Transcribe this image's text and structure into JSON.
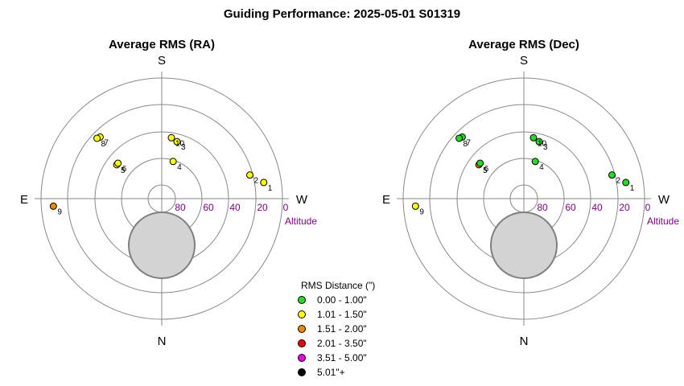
{
  "title": "Guiding Performance: 2025-05-01 S01319",
  "panels": [
    {
      "title": "Average RMS (RA)"
    },
    {
      "title": "Average RMS (Dec)"
    }
  ],
  "directions": {
    "top": "S",
    "bottom": "N",
    "left": "E",
    "right": "W"
  },
  "altitude_axis": {
    "label": "Altitude",
    "ticks": [
      "80",
      "60",
      "40",
      "20",
      "0"
    ]
  },
  "legend": {
    "title": "RMS Distance (\")",
    "items": [
      {
        "label": "0.00 - 1.00\"",
        "color": "#22dd22"
      },
      {
        "label": "1.01 - 1.50\"",
        "color": "#ffff00"
      },
      {
        "label": "1.51 - 2.00\"",
        "color": "#ee8800"
      },
      {
        "label": "2.01 - 3.50\"",
        "color": "#ee0000"
      },
      {
        "label": "3.51 - 5.00\"",
        "color": "#ee00ee"
      },
      {
        "label": "5.01\"+",
        "color": "#000000"
      }
    ]
  },
  "chart_data": [
    {
      "type": "scatter",
      "title": "Average RMS (RA)",
      "coordinates": "polar: azimuth (S top, W right, N bottom, E left), altitude 90 at center to 0 at edge",
      "altitude_range": [
        0,
        90
      ],
      "points": [
        {
          "label": "1",
          "azimuth": 279,
          "altitude": 13,
          "bin": 1
        },
        {
          "label": "2",
          "azimuth": 285,
          "altitude": 22,
          "bin": 1
        },
        {
          "label": "3",
          "azimuth": 345,
          "altitude": 46,
          "bin": 1
        },
        {
          "label": "4",
          "azimuth": 343,
          "altitude": 61,
          "bin": 1
        },
        {
          "label": "5",
          "azimuth": 53,
          "altitude": 48,
          "bin": 1
        },
        {
          "label": "6",
          "azimuth": 51,
          "altitude": 48,
          "bin": 1
        },
        {
          "label": "7",
          "azimuth": 45,
          "altitude": 25,
          "bin": 1
        },
        {
          "label": "8",
          "azimuth": 47,
          "altitude": 24,
          "bin": 1
        },
        {
          "label": "9",
          "azimuth": 94,
          "altitude": 9,
          "bin": 2
        },
        {
          "label": "10",
          "azimuth": 351,
          "altitude": 44,
          "bin": 1
        }
      ]
    },
    {
      "type": "scatter",
      "title": "Average RMS (Dec)",
      "coordinates": "polar: azimuth (S top, W right, N bottom, E left), altitude 90 at center to 0 at edge",
      "altitude_range": [
        0,
        90
      ],
      "points": [
        {
          "label": "1",
          "azimuth": 279,
          "altitude": 13,
          "bin": 0
        },
        {
          "label": "2",
          "azimuth": 285,
          "altitude": 22,
          "bin": 0
        },
        {
          "label": "3",
          "azimuth": 345,
          "altitude": 46,
          "bin": 0
        },
        {
          "label": "4",
          "azimuth": 343,
          "altitude": 61,
          "bin": 0
        },
        {
          "label": "5",
          "azimuth": 53,
          "altitude": 48,
          "bin": 2
        },
        {
          "label": "6",
          "azimuth": 51,
          "altitude": 48,
          "bin": 0
        },
        {
          "label": "7",
          "azimuth": 45,
          "altitude": 25,
          "bin": 0
        },
        {
          "label": "8",
          "azimuth": 47,
          "altitude": 24,
          "bin": 0
        },
        {
          "label": "9",
          "azimuth": 94,
          "altitude": 9,
          "bin": 1
        },
        {
          "label": "10",
          "azimuth": 351,
          "altitude": 44,
          "bin": 0
        }
      ]
    }
  ]
}
